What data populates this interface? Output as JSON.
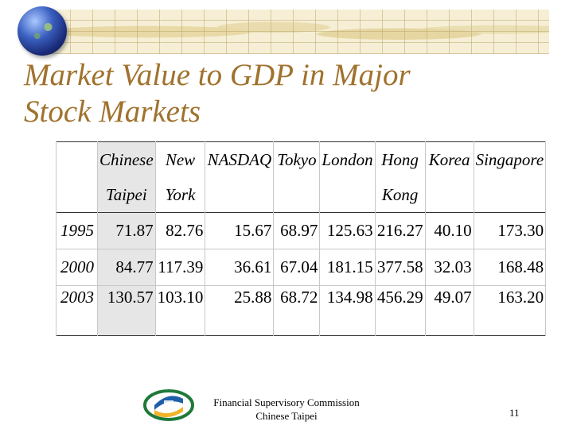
{
  "slide": {
    "title_line1": "Market Value to GDP in Major",
    "title_line2": "Stock Markets",
    "accent_color": "#a0722d"
  },
  "table": {
    "columns": [
      {
        "line1": "Chinese",
        "line2": "Taipei"
      },
      {
        "line1": "New",
        "line2": "York"
      },
      {
        "line1": "NASDAQ",
        "line2": ""
      },
      {
        "line1": "Tokyo",
        "line2": ""
      },
      {
        "line1": "London",
        "line2": ""
      },
      {
        "line1": "Hong",
        "line2": "Kong"
      },
      {
        "line1": "Korea",
        "line2": ""
      },
      {
        "line1": "Singapore",
        "line2": ""
      }
    ],
    "rows": [
      {
        "year": "1995",
        "values": [
          "71.87",
          "82.76",
          "15.67",
          "68.97",
          "125.63",
          "216.27",
          "40.10",
          "173.30"
        ]
      },
      {
        "year": "2000",
        "values": [
          "84.77",
          "117.39",
          "36.61",
          "67.04",
          "181.15",
          "377.58",
          "32.03",
          "168.48"
        ]
      },
      {
        "year": "2003",
        "values": [
          "130.57",
          "103.10",
          "25.88",
          "68.72",
          "134.98",
          "456.29",
          "49.07",
          "163.20"
        ]
      }
    ]
  },
  "footer": {
    "org_line1": "Financial Supervisory Commission",
    "org_line2": "Chinese Taipei",
    "page_number": "11",
    "logo_colors": [
      "#1f7a3a",
      "#f2b32a",
      "#1f5fa8"
    ]
  },
  "decor": {
    "banner_icon": "world-map-banner",
    "globe_icon": "globe-icon",
    "logo_icon": "fsc-logo-icon"
  }
}
